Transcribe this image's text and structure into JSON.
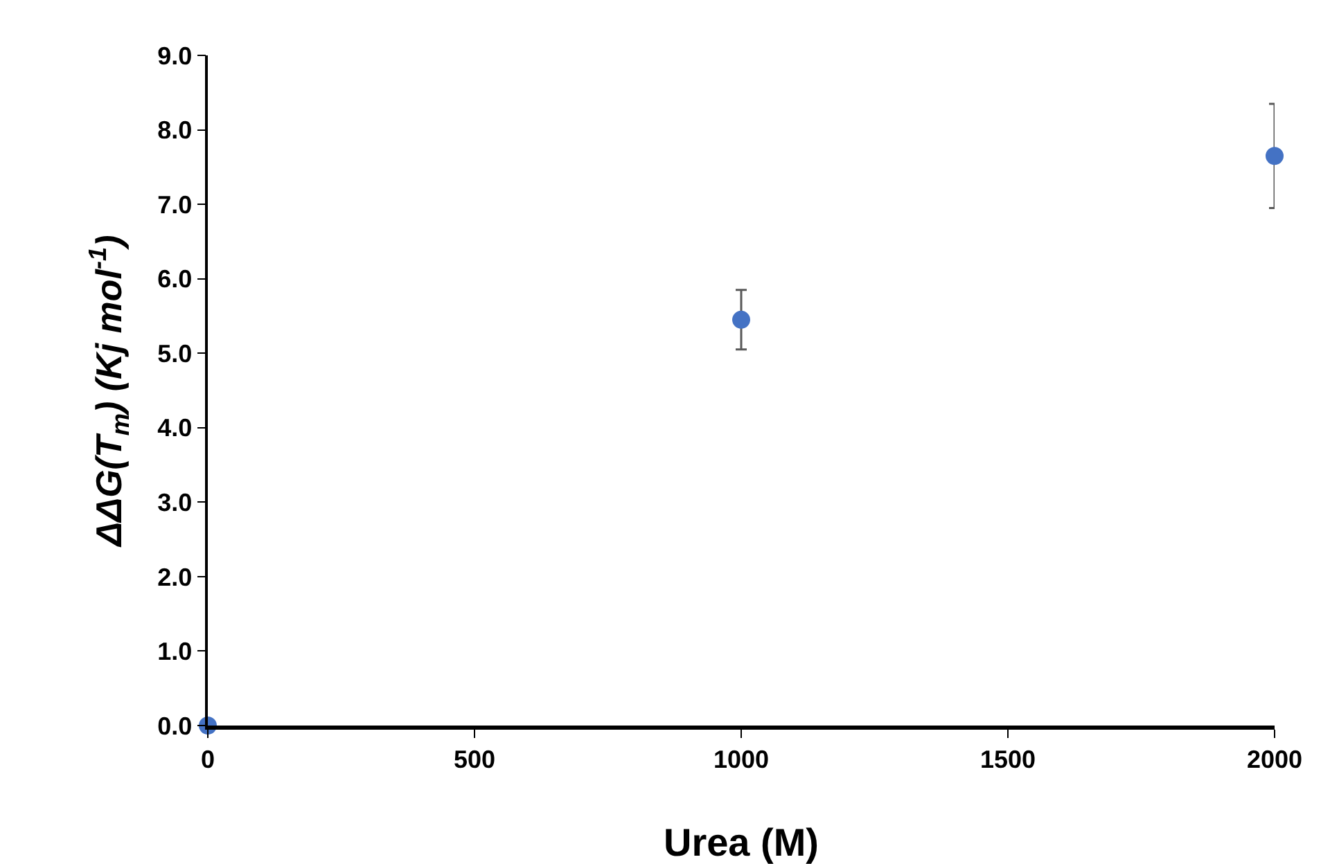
{
  "chart_data": {
    "type": "scatter",
    "xlabel": "Urea (M)",
    "ylabel": "ΔΔG(T$_{m}$) (Kj mol$^{-1}$)",
    "x": [
      0,
      1000,
      2000
    ],
    "series": [
      {
        "color": "#4472c4",
        "values": [
          0,
          5.45,
          7.65
        ],
        "errors": [
          null,
          0.4,
          0.7
        ]
      }
    ],
    "xlim": [
      0,
      2000
    ],
    "xticks": [
      0,
      500,
      1000,
      1500,
      2000
    ],
    "ylim": [
      0,
      9
    ],
    "yticks": [
      {
        "value": 0,
        "label": "0.0"
      },
      {
        "value": 1,
        "label": "1.0"
      },
      {
        "value": 2,
        "label": "2.0"
      },
      {
        "value": 3,
        "label": "3.0"
      },
      {
        "value": 4,
        "label": "4.0"
      },
      {
        "value": 5,
        "label": "5.0"
      },
      {
        "value": 6,
        "label": "6.0"
      },
      {
        "value": 7,
        "label": "7.0"
      },
      {
        "value": 8,
        "label": "8.0"
      },
      {
        "value": 9,
        "label": "9.0"
      }
    ],
    "grid": false,
    "legend": false,
    "marker": "circle"
  }
}
